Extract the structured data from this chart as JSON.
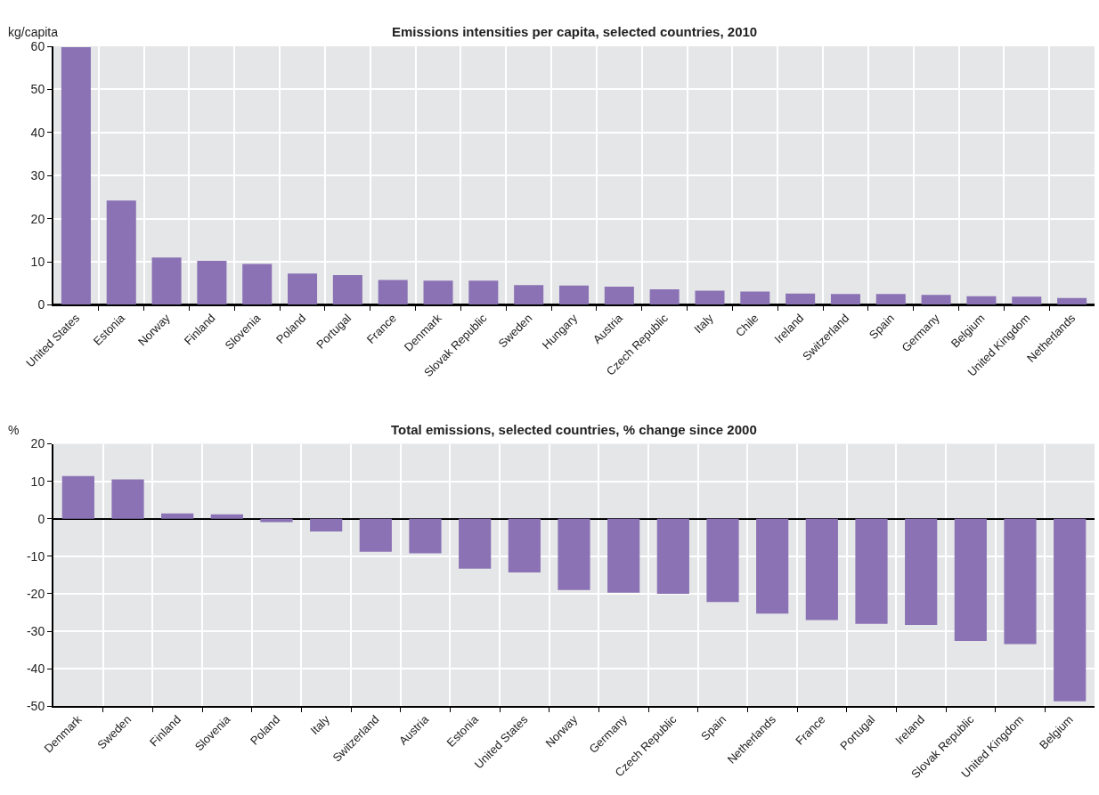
{
  "chart_data": [
    {
      "type": "bar",
      "title": "Emissions intensities per capita, selected countries, 2010",
      "ylabel": "kg/capita",
      "categories": [
        "United States",
        "Estonia",
        "Norway",
        "Finland",
        "Slovenia",
        "Poland",
        "Portugal",
        "France",
        "Denmark",
        "Slovak Republic",
        "Sweden",
        "Hungary",
        "Austria",
        "Czech Republic",
        "Italy",
        "Chile",
        "Ireland",
        "Switzerland",
        "Spain",
        "Germany",
        "Belgium",
        "United Kingdom",
        "Netherlands"
      ],
      "values": [
        59.8,
        24.2,
        11.0,
        10.2,
        9.5,
        7.3,
        6.9,
        5.8,
        5.6,
        5.6,
        4.6,
        4.5,
        4.2,
        3.6,
        3.3,
        3.1,
        2.6,
        2.5,
        2.5,
        2.3,
        2.0,
        1.9,
        1.6
      ],
      "color": "#8a72b4",
      "ylim": [
        0,
        60
      ],
      "yticks": [
        0,
        10,
        20,
        30,
        40,
        50,
        60
      ],
      "grid": true,
      "legend": false
    },
    {
      "type": "bar",
      "title": "Total emissions, selected countries, % change since 2000",
      "ylabel": "%",
      "categories": [
        "Denmark",
        "Sweden",
        "Finland",
        "Slovenia",
        "Poland",
        "Italy",
        "Switzerland",
        "Austria",
        "Estonia",
        "United States",
        "Norway",
        "Germany",
        "Czech Republic",
        "Spain",
        "Netherlands",
        "France",
        "Portugal",
        "Ireland",
        "Slovak Republic",
        "United Kingdom",
        "Belgium"
      ],
      "values": [
        11.4,
        10.5,
        1.4,
        1.2,
        -0.9,
        -3.4,
        -8.8,
        -9.2,
        -13.3,
        -14.3,
        -19.0,
        -19.7,
        -20.0,
        -22.2,
        -25.3,
        -27.0,
        -28.0,
        -28.3,
        -32.6,
        -33.4,
        -48.7
      ],
      "color": "#8a72b4",
      "ylim": [
        -50,
        20
      ],
      "yticks": [
        -50,
        -40,
        -30,
        -20,
        -10,
        0,
        10,
        20
      ],
      "grid": true,
      "legend": false
    }
  ]
}
